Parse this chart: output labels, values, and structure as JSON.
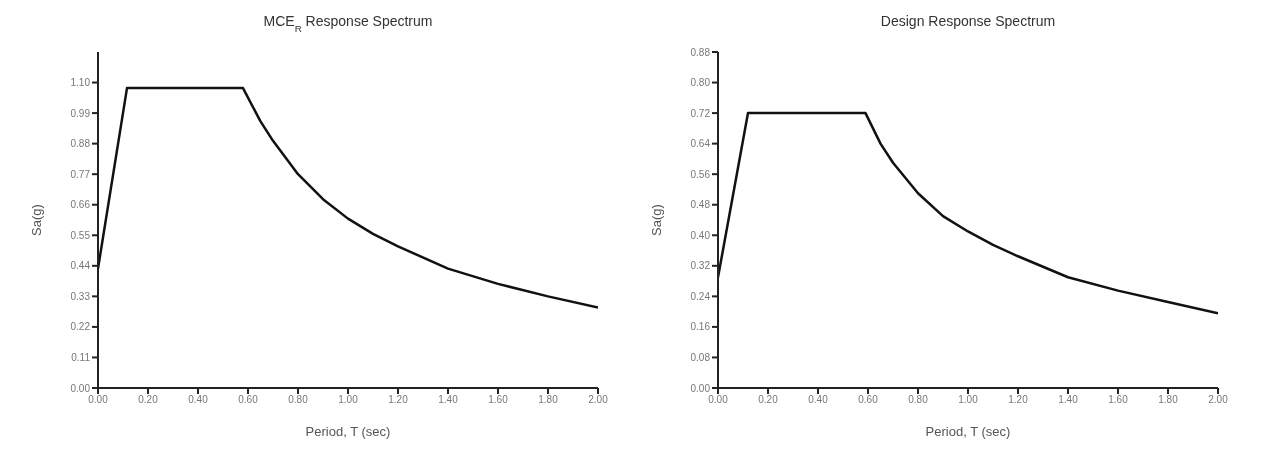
{
  "chart_data": [
    {
      "type": "line",
      "title": "MCE$_{R}$ Response Spectrum",
      "xlabel": "Period, T (sec)",
      "ylabel": "Sa(g)",
      "x": [
        0,
        0.116,
        0.58,
        0.65,
        0.7,
        0.8,
        0.9,
        1.0,
        1.1,
        1.2,
        1.4,
        1.6,
        1.8,
        2.0
      ],
      "series": [
        {
          "color": "#111111",
          "values": [
            0.43,
            1.08,
            1.08,
            0.96,
            0.89,
            0.77,
            0.68,
            0.61,
            0.555,
            0.51,
            0.43,
            0.375,
            0.33,
            0.29
          ]
        }
      ],
      "xlim": [
        0,
        2
      ],
      "ylim": [
        0,
        1.21
      ],
      "xticks": [
        {
          "value": 0,
          "label": "0.00"
        },
        {
          "value": 0.2,
          "label": "0.20"
        },
        {
          "value": 0.4,
          "label": "0.40"
        },
        {
          "value": 0.6,
          "label": "0.60"
        },
        {
          "value": 0.8,
          "label": "0.80"
        },
        {
          "value": 1,
          "label": "1.00"
        },
        {
          "value": 1.2,
          "label": "1.20"
        },
        {
          "value": 1.4,
          "label": "1.40"
        },
        {
          "value": 1.6,
          "label": "1.60"
        },
        {
          "value": 1.8,
          "label": "1.80"
        },
        {
          "value": 2,
          "label": "2.00"
        }
      ],
      "yticks": [
        {
          "value": 0,
          "label": "0.00"
        },
        0.11,
        0.22,
        0.33,
        0.44,
        0.55,
        0.66,
        0.77,
        0.88,
        0.99,
        {
          "value": 1.1,
          "label": "1.10"
        }
      ],
      "grid": false,
      "legend": false,
      "marker": "none",
      "line_style": "solid"
    },
    {
      "type": "line",
      "title": "Design Response Spectrum",
      "xlabel": "Period, T (sec)",
      "ylabel": "Sa(g)",
      "x": [
        0,
        0.12,
        0.59,
        0.65,
        0.7,
        0.8,
        0.9,
        1.0,
        1.1,
        1.2,
        1.4,
        1.6,
        1.8,
        2.0
      ],
      "series": [
        {
          "color": "#111111",
          "values": [
            0.29,
            0.72,
            0.72,
            0.64,
            0.59,
            0.51,
            0.45,
            0.41,
            0.375,
            0.345,
            0.29,
            0.255,
            0.225,
            0.196
          ]
        }
      ],
      "xlim": [
        0,
        2
      ],
      "ylim": [
        0,
        0.88
      ],
      "xticks": [
        {
          "value": 0,
          "label": "0.00"
        },
        {
          "value": 0.2,
          "label": "0.20"
        },
        {
          "value": 0.4,
          "label": "0.40"
        },
        {
          "value": 0.6,
          "label": "0.60"
        },
        {
          "value": 0.8,
          "label": "0.80"
        },
        {
          "value": 1,
          "label": "1.00"
        },
        {
          "value": 1.2,
          "label": "1.20"
        },
        {
          "value": 1.4,
          "label": "1.40"
        },
        {
          "value": 1.6,
          "label": "1.60"
        },
        {
          "value": 1.8,
          "label": "1.80"
        },
        {
          "value": 2,
          "label": "2.00"
        }
      ],
      "yticks": [
        {
          "value": 0,
          "label": "0.00"
        },
        0.08,
        0.16,
        0.24,
        0.32,
        {
          "value": 0.4,
          "label": "0.40"
        },
        0.48,
        0.56,
        0.64,
        0.72,
        {
          "value": 0.8,
          "label": "0.80"
        },
        0.88
      ],
      "grid": false,
      "legend": false,
      "marker": "none",
      "line_style": "solid"
    }
  ]
}
